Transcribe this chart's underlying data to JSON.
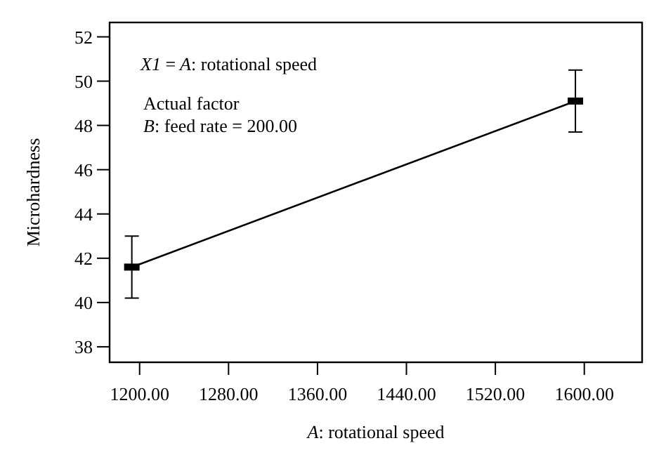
{
  "chart_data": {
    "type": "line",
    "xlabel": "A: rotational speed",
    "ylabel": "Microhardness",
    "x": [
      1193,
      1592
    ],
    "series": [
      {
        "color": "#000000",
        "values": [
          41.6,
          49.1
        ],
        "errors": [
          [
            40.2,
            43.0
          ],
          [
            47.7,
            50.5
          ]
        ]
      }
    ],
    "xlim": [
      1173,
      1652
    ],
    "xticks": [
      {
        "value": 1200,
        "label": "1200.00"
      },
      {
        "value": 1280,
        "label": "1280.00"
      },
      {
        "value": 1360,
        "label": "1360.00"
      },
      {
        "value": 1440,
        "label": "1440.00"
      },
      {
        "value": 1520,
        "label": "1520.00"
      },
      {
        "value": 1600,
        "label": "1600.00"
      }
    ],
    "ylim": [
      37.3,
      52.65
    ],
    "yticks": [
      38,
      40,
      42,
      44,
      46,
      48,
      50,
      52
    ],
    "marker": "square",
    "line_style": "solid",
    "annotations": [
      "X1 = A: rotational speed",
      "Actual factor",
      "B: feed rate = 200.00"
    ]
  }
}
